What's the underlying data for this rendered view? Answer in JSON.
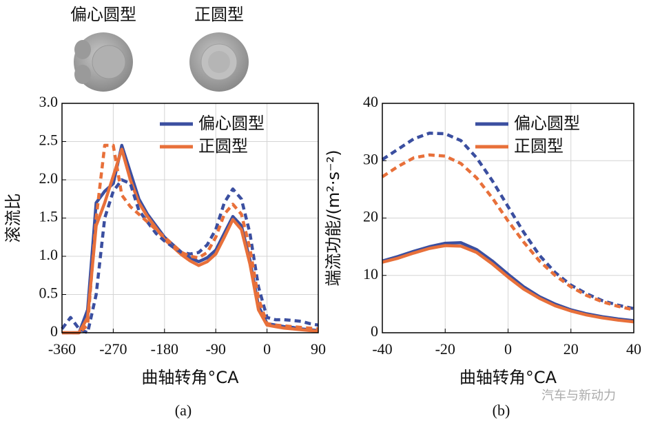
{
  "pistons": [
    {
      "label": "偏心圆型"
    },
    {
      "label": "正圆型"
    }
  ],
  "watermark": "汽车与新动力",
  "chart_data": [
    {
      "type": "line",
      "caption": "(a)",
      "xlabel": "曲轴转角°CA",
      "ylabel": "滚流比",
      "xlim": [
        -360,
        90
      ],
      "xticks": [
        -360,
        -270,
        -180,
        -90,
        0,
        90
      ],
      "ylim": [
        0,
        3
      ],
      "yticks": [
        0,
        0.5,
        {
          "value": 1,
          "label": "1.0"
        },
        1.5,
        {
          "value": 2,
          "label": "2.0"
        },
        2.5,
        {
          "value": 3,
          "label": "3.0"
        }
      ],
      "grid": true,
      "legend": "upper right",
      "x": [
        -360,
        -345,
        -330,
        -315,
        -300,
        -285,
        -270,
        -255,
        -240,
        -225,
        -210,
        -195,
        -180,
        -165,
        -150,
        -135,
        -120,
        -105,
        -90,
        -75,
        -60,
        -45,
        -30,
        -15,
        0,
        15,
        30,
        45,
        60,
        75,
        90
      ],
      "series": [
        {
          "name": "偏心圆型",
          "color": "#3b4fa0",
          "dash": false,
          "values": [
            0,
            0,
            0,
            0.3,
            1.7,
            1.85,
            1.95,
            2.45,
            2.1,
            1.75,
            1.55,
            1.4,
            1.25,
            1.15,
            1.05,
            0.98,
            0.93,
            0.98,
            1.08,
            1.3,
            1.52,
            1.4,
            0.95,
            0.35,
            0.12,
            0.1,
            0.08,
            0.07,
            0.05,
            0.04,
            0.03
          ]
        },
        {
          "name": "正圆型",
          "color": "#e8703a",
          "dash": false,
          "values": [
            0,
            0,
            0,
            0.2,
            1.4,
            1.7,
            2.05,
            2.4,
            2.0,
            1.7,
            1.52,
            1.37,
            1.22,
            1.12,
            1.02,
            0.94,
            0.88,
            0.93,
            1.03,
            1.25,
            1.48,
            1.35,
            0.9,
            0.3,
            0.1,
            0.08,
            0.06,
            0.05,
            0.04,
            0.03,
            0.02
          ]
        },
        {
          "color": "#3b4fa0",
          "dash": true,
          "values": [
            0.05,
            0.2,
            0.05,
            0,
            0.5,
            1.5,
            1.85,
            2.0,
            1.95,
            1.6,
            1.45,
            1.3,
            1.2,
            1.12,
            1.05,
            1.03,
            1.05,
            1.15,
            1.35,
            1.7,
            1.88,
            1.75,
            1.3,
            0.6,
            0.2,
            0.17,
            0.17,
            0.16,
            0.15,
            0.12,
            0.1
          ]
        },
        {
          "color": "#e8703a",
          "dash": true,
          "values": [
            0,
            0,
            0,
            0.1,
            1.5,
            2.45,
            2.45,
            1.8,
            1.65,
            1.55,
            1.45,
            1.35,
            1.25,
            1.15,
            1.05,
            1.0,
            0.98,
            1.05,
            1.25,
            1.55,
            1.68,
            1.55,
            1.1,
            0.45,
            0.12,
            0.1,
            0.09,
            0.08,
            0.07,
            0.06,
            0.05
          ]
        }
      ]
    },
    {
      "type": "line",
      "caption": "(b)",
      "xlabel": "曲轴转角°CA",
      "ylabel": "端流功能/(m²·s⁻²)",
      "xlim": [
        -40,
        40
      ],
      "xticks": [
        -40,
        -20,
        0,
        20,
        40
      ],
      "ylim": [
        0,
        40
      ],
      "yticks": [
        0,
        10,
        20,
        30,
        40
      ],
      "grid": true,
      "legend": "upper right",
      "x": [
        -40,
        -35,
        -30,
        -25,
        -20,
        -15,
        -10,
        -5,
        0,
        5,
        10,
        15,
        20,
        25,
        30,
        35,
        40
      ],
      "series": [
        {
          "name": "偏心圆型",
          "color": "#3b4fa0",
          "dash": false,
          "values": [
            12.5,
            13.3,
            14.2,
            15,
            15.6,
            15.7,
            14.5,
            12.5,
            10.2,
            8,
            6.3,
            5,
            4,
            3.3,
            2.8,
            2.4,
            2.1
          ]
        },
        {
          "name": "正圆型",
          "color": "#e8703a",
          "dash": false,
          "values": [
            12.3,
            13,
            13.9,
            14.7,
            15.2,
            15.1,
            14,
            12,
            9.7,
            7.6,
            6,
            4.7,
            3.8,
            3.1,
            2.6,
            2.2,
            1.9
          ]
        },
        {
          "color": "#3b4fa0",
          "dash": true,
          "values": [
            30.2,
            32,
            33.8,
            34.8,
            34.7,
            33.5,
            30.5,
            26.5,
            22,
            17.5,
            13.5,
            10.5,
            8.3,
            6.8,
            5.6,
            4.8,
            4.2
          ]
        },
        {
          "color": "#e8703a",
          "dash": true,
          "values": [
            27.2,
            29,
            30.5,
            31,
            30.8,
            29.5,
            27,
            23.5,
            19.5,
            15.8,
            12.5,
            10,
            8,
            6.5,
            5.4,
            4.6,
            4
          ]
        }
      ]
    }
  ]
}
